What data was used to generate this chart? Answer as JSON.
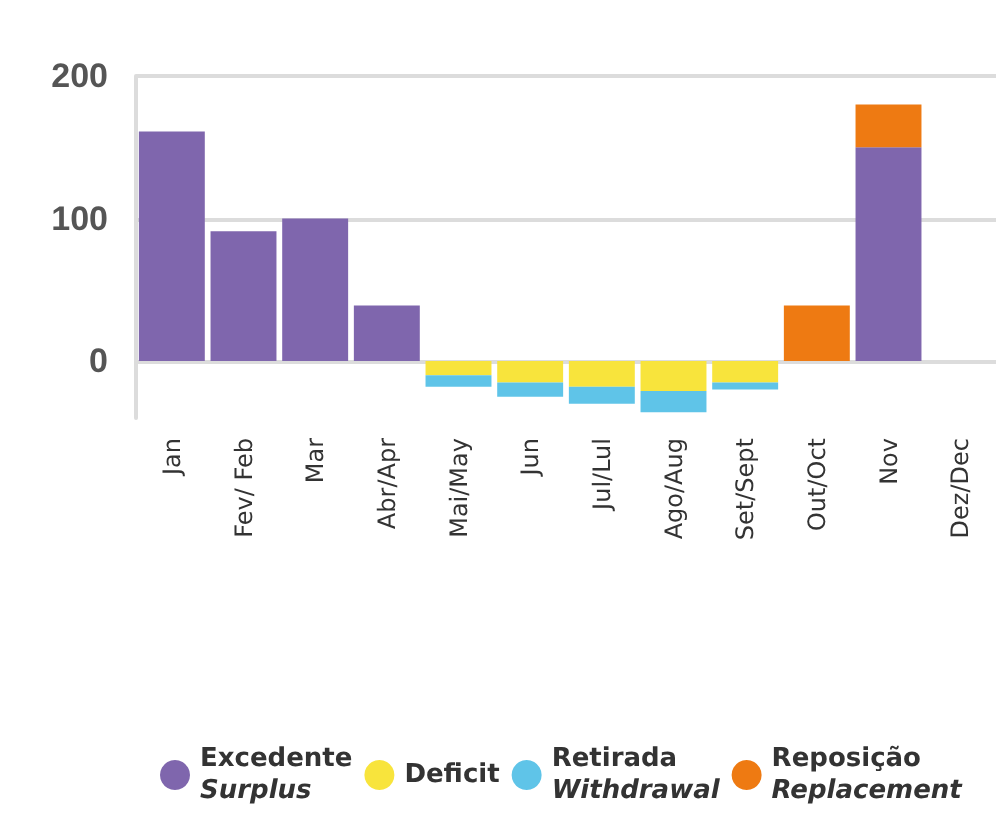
{
  "chart_data": {
    "type": "bar",
    "stacked": true,
    "categories": [
      "Jan",
      "Fev/ Feb",
      "Mar",
      "Abr/Apr",
      "Mai/May",
      "Jun",
      "Jul/Lul",
      "Ago/Aug",
      "Set/Sept",
      "Out/Oct",
      "Nov",
      "Dez/Dec"
    ],
    "series": [
      {
        "name": "Excedente\nSurplus",
        "color": "#7f66ad",
        "values": [
          161,
          91,
          100,
          39,
          null,
          null,
          null,
          null,
          null,
          null,
          150,
          null
        ]
      },
      {
        "name": "Deficit",
        "color": "#f8e43c",
        "values": [
          null,
          null,
          null,
          null,
          -10,
          -15,
          -18,
          -21,
          -15,
          null,
          null,
          null
        ]
      },
      {
        "name": "Retirada\nWithdrawal",
        "color": "#5fc4e8",
        "values": [
          null,
          null,
          null,
          null,
          -8,
          -10,
          -12,
          -15,
          -5,
          null,
          null,
          null
        ]
      },
      {
        "name": "Reposição\nReplacement",
        "color": "#ee7a12",
        "values": [
          null,
          null,
          null,
          null,
          null,
          null,
          null,
          null,
          null,
          39,
          30,
          null
        ]
      }
    ],
    "ylim": [
      -40,
      200
    ],
    "yticks": [
      0,
      100,
      200
    ],
    "grid": "y",
    "legend": "bottom"
  }
}
